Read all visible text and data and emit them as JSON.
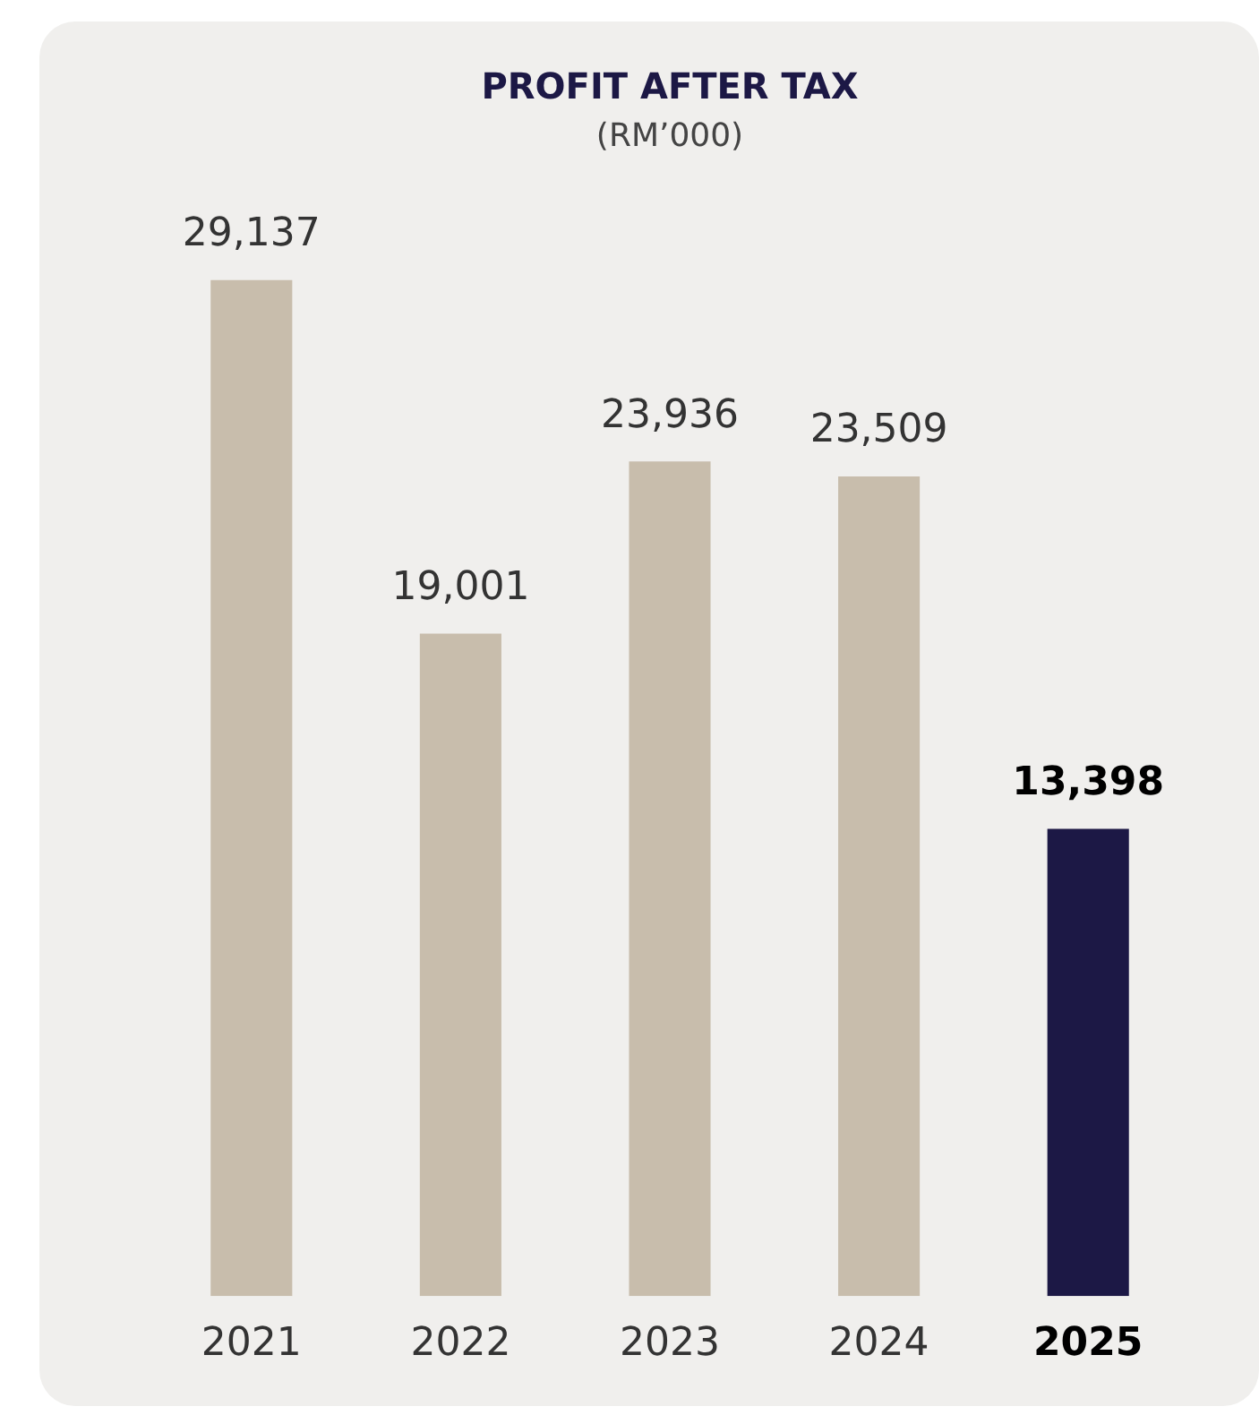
{
  "chart_data": {
    "type": "bar",
    "title": "PROFIT AFTER TAX",
    "subtitle": "(RM’000)",
    "categories": [
      "2021",
      "2022",
      "2023",
      "2024",
      "2025"
    ],
    "values": [
      29137,
      19001,
      23936,
      23509,
      13398
    ],
    "colors": [
      "#c8bdac",
      "#c8bdac",
      "#c8bdac",
      "#c8bdac",
      "#1c1845"
    ],
    "value_labels": [
      "29,137",
      "19,001",
      "23,936",
      "23,509",
      "13,398"
    ],
    "grid": false,
    "legend": false
  }
}
